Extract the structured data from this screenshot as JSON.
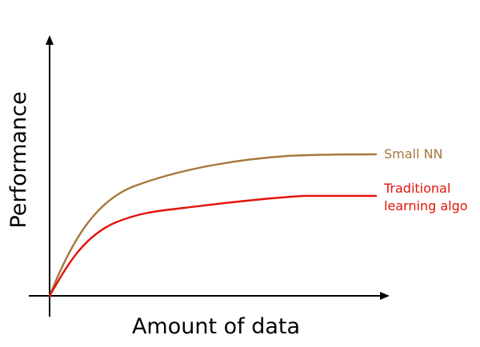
{
  "chart_data": {
    "type": "line",
    "xlabel": "Amount of data",
    "ylabel": "Performance",
    "grid": false,
    "legend": "inline labels at right end of each curve",
    "colors": {
      "small_nn": "#a6783c",
      "traditional": "#e3120b",
      "axes": "#000000"
    },
    "series": [
      {
        "name": "Small NN",
        "label_lines": [
          "Small NN"
        ]
      },
      {
        "name": "Traditional learning algo",
        "label_lines": [
          "Traditional",
          "learning algo"
        ]
      }
    ]
  }
}
